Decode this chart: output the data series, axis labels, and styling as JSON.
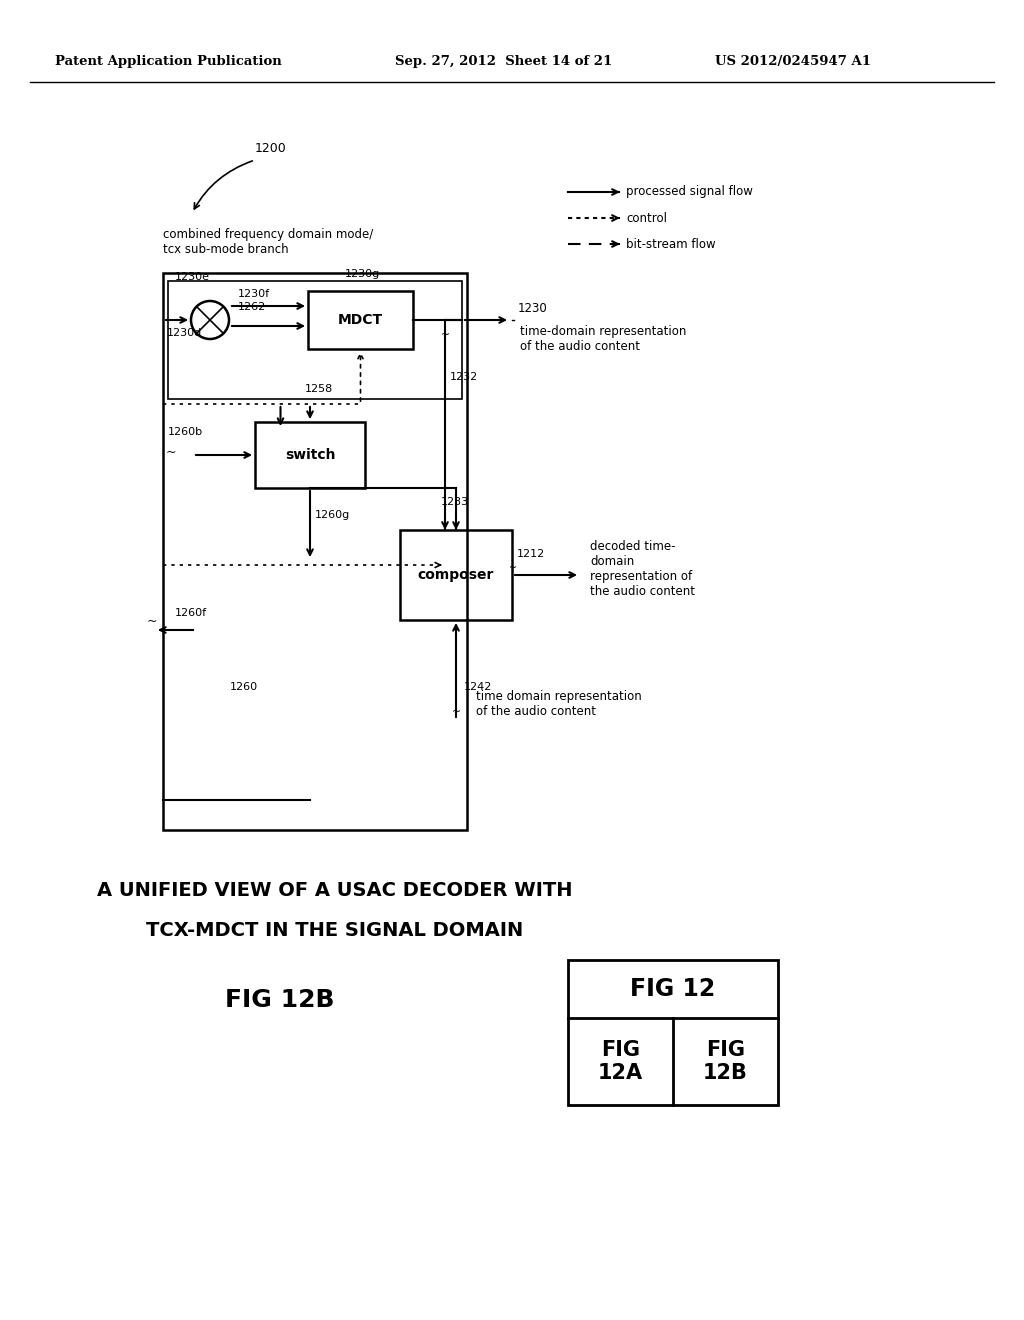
{
  "bg_color": "#ffffff",
  "header_left": "Patent Application Publication",
  "header_center": "Sep. 27, 2012  Sheet 14 of 21",
  "header_right": "US 2012/0245947 A1",
  "label_1200": "1200",
  "combined_label": "combined frequency domain mode/\ntcx sub-mode branch",
  "legend_solid": "processed signal flow",
  "legend_dotted": "control",
  "legend_dashed": "bit-stream flow",
  "mdct_label": "MDCT",
  "switch_label": "switch",
  "composer_label": "composer",
  "label_1230e": "1230e",
  "label_1230f": "1230f",
  "label_1230g": "1230g",
  "label_1230": "1230",
  "label_1230d": "1230d",
  "label_1262": "1262",
  "label_1258": "1258",
  "label_1232": "1232",
  "label_1233": "1233",
  "label_1260b": "1260b",
  "label_1260g": "1260g",
  "label_1260f": "1260f",
  "label_1260": "1260",
  "label_1212": "1212",
  "label_1242": "1242",
  "text_time_domain_top": "time-domain representation\nof the audio content",
  "text_decoded": "decoded time-\ndomain\nrepresentation of\nthe audio content",
  "text_time_domain_bottom": "time domain representation\nof the audio content",
  "caption_line1": "A UNIFIED VIEW OF A USAC DECODER WITH",
  "caption_line2": "TCX-MDCT IN THE SIGNAL DOMAIN",
  "fig_label": "FIG 12B",
  "fig_table_title": "FIG 12",
  "fig_table_12a": "FIG\n12A",
  "fig_table_12b": "FIG\n12B"
}
